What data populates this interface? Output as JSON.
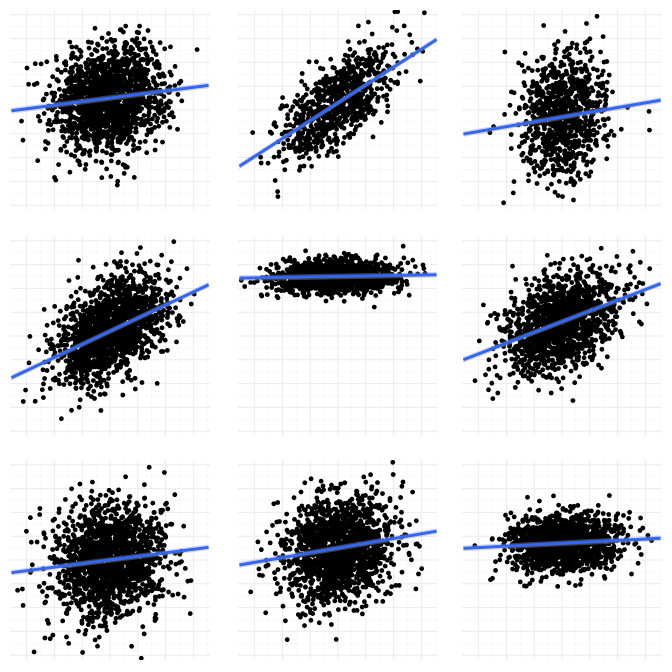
{
  "chart_data": [
    {
      "type": "scatter",
      "xlim": [
        -3.6,
        3.6
      ],
      "ylim": [
        -4.2,
        4.2
      ],
      "n": 1600,
      "sx": 1.0,
      "sy": 1.1,
      "slope": 0.15,
      "intercept": 0.5,
      "grid": true
    },
    {
      "type": "scatter",
      "xlim": [
        -3.6,
        3.6
      ],
      "ylim": [
        -4.2,
        4.2
      ],
      "n": 800,
      "sx": 1.0,
      "sy": 0.9,
      "slope": 0.75,
      "intercept": 0.3,
      "grid": true
    },
    {
      "type": "scatter",
      "xlim": [
        -3.6,
        3.6
      ],
      "ylim": [
        -4.2,
        4.2
      ],
      "n": 900,
      "sx": 0.8,
      "sy": 1.3,
      "slope": 0.2,
      "intercept": -0.3,
      "grid": true
    },
    {
      "type": "scatter",
      "xlim": [
        -3.6,
        3.6
      ],
      "ylim": [
        -4.2,
        4.2
      ],
      "n": 1600,
      "sx": 1.0,
      "sy": 1.0,
      "slope": 0.55,
      "intercept": 0.2,
      "grid": true
    },
    {
      "type": "scatter",
      "xlim": [
        -3.6,
        3.6
      ],
      "ylim": [
        -4.2,
        4.2
      ],
      "n": 1400,
      "sx": 1.1,
      "sy": 0.35,
      "slope": 0.02,
      "intercept": 2.5,
      "grid": true
    },
    {
      "type": "scatter",
      "xlim": [
        -3.6,
        3.6
      ],
      "ylim": [
        -4.2,
        4.2
      ],
      "n": 1400,
      "sx": 1.0,
      "sy": 1.0,
      "slope": 0.45,
      "intercept": 0.6,
      "grid": true
    },
    {
      "type": "scatter",
      "xlim": [
        -3.6,
        3.6
      ],
      "ylim": [
        -4.2,
        4.2
      ],
      "n": 1600,
      "sx": 1.0,
      "sy": 1.2,
      "slope": 0.15,
      "intercept": 0.0,
      "grid": true
    },
    {
      "type": "scatter",
      "xlim": [
        -3.6,
        3.6
      ],
      "ylim": [
        -4.2,
        4.2
      ],
      "n": 1500,
      "sx": 1.0,
      "sy": 1.1,
      "slope": 0.2,
      "intercept": 0.5,
      "grid": true
    },
    {
      "type": "scatter",
      "xlim": [
        -3.6,
        3.6
      ],
      "ylim": [
        -4.2,
        4.2
      ],
      "n": 1400,
      "sx": 1.0,
      "sy": 0.6,
      "slope": 0.06,
      "intercept": 0.7,
      "grid": true
    }
  ],
  "colors": {
    "background": "#ffffff",
    "grid_major": "#ebebeb",
    "grid_minor": "#f5f5f5",
    "points": "#000000",
    "fit_line": "#3366ff",
    "ribbon": "#999999"
  }
}
